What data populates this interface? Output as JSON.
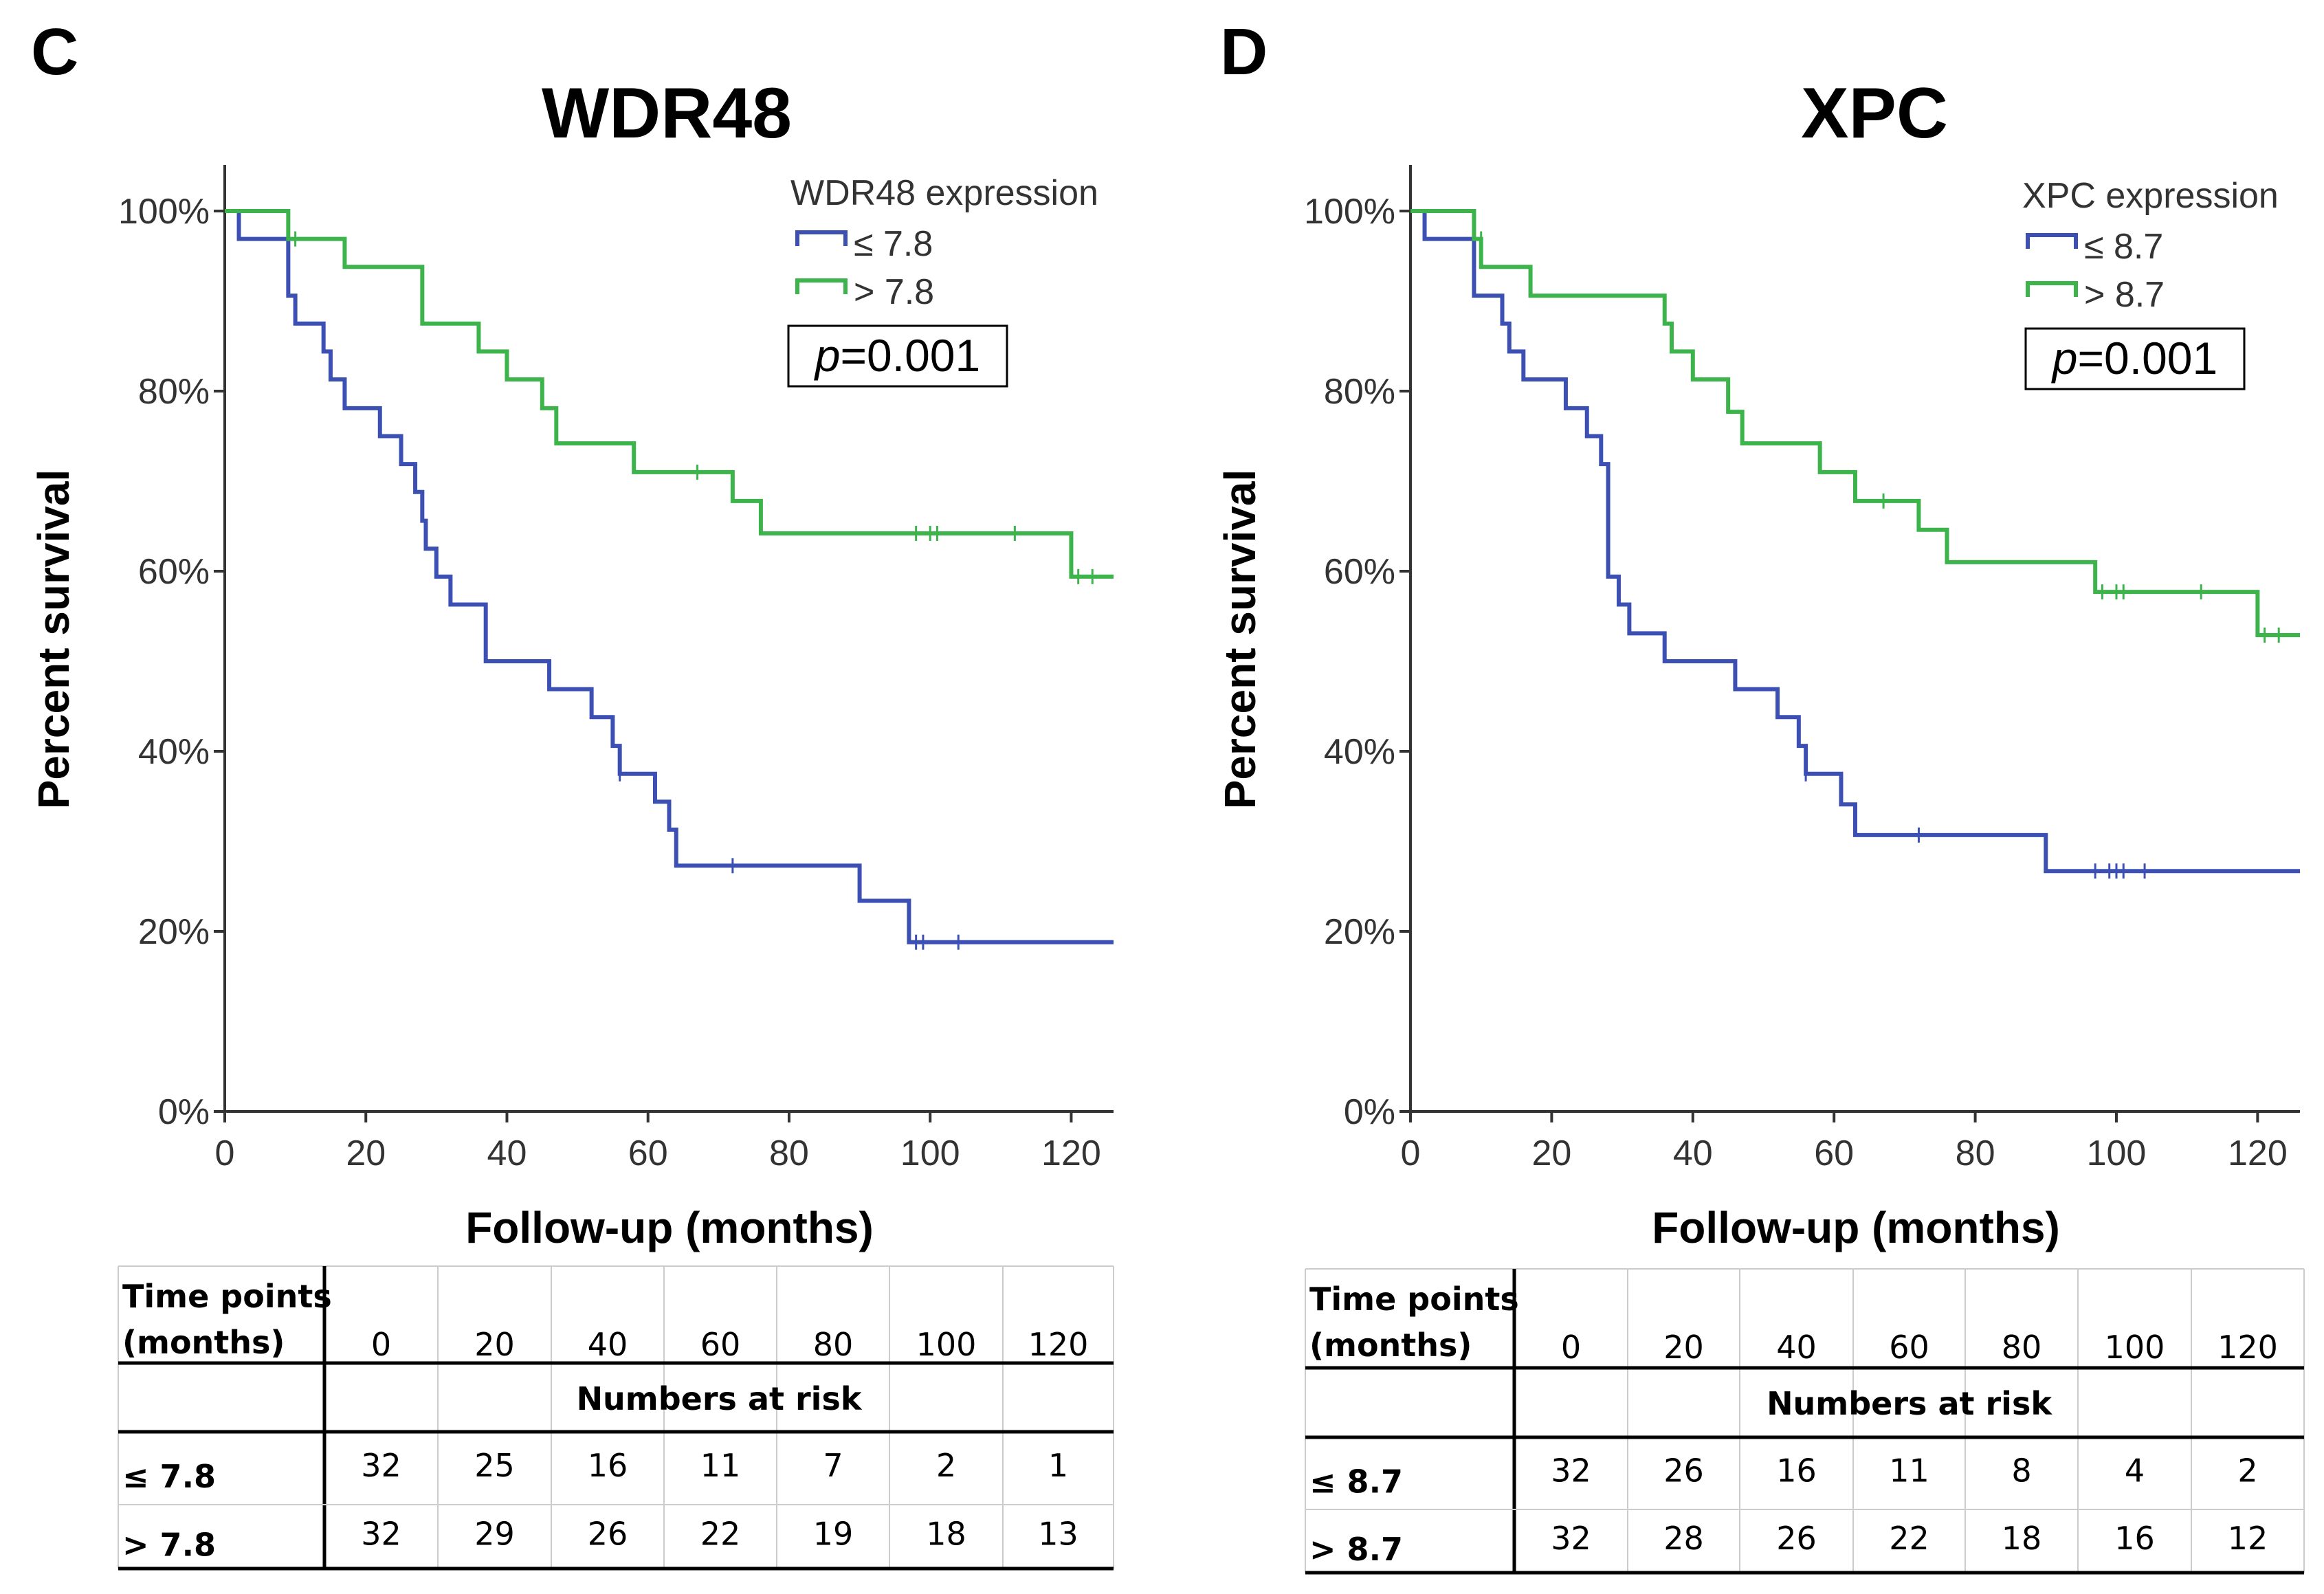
{
  "chart_data": [
    {
      "panel": "C",
      "type": "line",
      "subtype": "kaplan-meier",
      "title": "WDR48",
      "xlabel": "Follow-up (months)",
      "ylabel": "Percent survival",
      "xlim": [
        0,
        126
      ],
      "ylim": [
        0,
        100
      ],
      "xticks": [
        "0",
        "20",
        "40",
        "60",
        "80",
        "100",
        "120"
      ],
      "yticks": [
        "0%",
        "20%",
        "40%",
        "60%",
        "80%",
        "100%"
      ],
      "legend_title": "WDR48 expression",
      "p_value_prefix": "p",
      "p_value": "=0.001",
      "series": [
        {
          "name": "≤ 7.8",
          "color": "#3c50b4",
          "steps": [
            [
              0,
              100
            ],
            [
              2,
              96.9
            ],
            [
              9,
              90.6
            ],
            [
              10,
              87.5
            ],
            [
              14,
              84.4
            ],
            [
              15,
              81.3
            ],
            [
              17,
              78.1
            ],
            [
              22,
              75
            ],
            [
              25,
              71.9
            ],
            [
              27,
              68.8
            ],
            [
              28,
              65.6
            ],
            [
              28.5,
              62.5
            ],
            [
              30,
              59.4
            ],
            [
              32,
              56.3
            ],
            [
              37,
              50
            ],
            [
              46,
              46.9
            ],
            [
              52,
              43.8
            ],
            [
              55,
              40.6
            ],
            [
              56,
              37.5
            ],
            [
              61,
              34.4
            ],
            [
              63,
              31.3
            ],
            [
              64,
              27.3
            ],
            [
              90,
              23.4
            ],
            [
              97,
              18.8
            ],
            [
              126,
              18.8
            ]
          ],
          "censors": [
            [
              56,
              37.5
            ],
            [
              72,
              27.3
            ],
            [
              98,
              18.8
            ],
            [
              99,
              18.8
            ],
            [
              104,
              18.8
            ]
          ]
        },
        {
          "name": "> 7.8",
          "color": "#3cb44b",
          "steps": [
            [
              0,
              100
            ],
            [
              9,
              96.9
            ],
            [
              17,
              93.8
            ],
            [
              28,
              87.5
            ],
            [
              36,
              84.4
            ],
            [
              40,
              81.3
            ],
            [
              45,
              78.1
            ],
            [
              47,
              74.2
            ],
            [
              58,
              71
            ],
            [
              72,
              67.8
            ],
            [
              76,
              64.2
            ],
            [
              120,
              59.4
            ],
            [
              126,
              59.4
            ]
          ],
          "censors": [
            [
              10,
              96.9
            ],
            [
              67,
              71
            ],
            [
              98,
              64.2
            ],
            [
              100,
              64.2
            ],
            [
              101,
              64.2
            ],
            [
              112,
              64.2
            ],
            [
              121,
              59.4
            ],
            [
              123,
              59.4
            ]
          ]
        }
      ],
      "risk_table": {
        "header_line1": "Time points",
        "header_line2": "(months)",
        "subheader": "Numbers at risk",
        "time_points": [
          "0",
          "20",
          "40",
          "60",
          "80",
          "100",
          "120"
        ],
        "rows": [
          {
            "label": "≤ 7.8",
            "values": [
              "32",
              "25",
              "16",
              "11",
              "7",
              "2",
              "1"
            ]
          },
          {
            "label": "> 7.8",
            "values": [
              "32",
              "29",
              "26",
              "22",
              "19",
              "18",
              "13"
            ]
          }
        ]
      }
    },
    {
      "panel": "D",
      "type": "line",
      "subtype": "kaplan-meier",
      "title": "XPC",
      "xlabel": "Follow-up (months)",
      "ylabel": "Percent survival",
      "xlim": [
        0,
        126
      ],
      "ylim": [
        0,
        100
      ],
      "xticks": [
        "0",
        "20",
        "40",
        "60",
        "80",
        "100",
        "120"
      ],
      "yticks": [
        "0%",
        "20%",
        "40%",
        "60%",
        "80%",
        "100%"
      ],
      "legend_title": "XPC expression",
      "p_value_prefix": "p",
      "p_value": "=0.001",
      "series": [
        {
          "name": "≤ 8.7",
          "color": "#3c50b4",
          "steps": [
            [
              0,
              100
            ],
            [
              2,
              96.9
            ],
            [
              9,
              90.6
            ],
            [
              13,
              87.5
            ],
            [
              14,
              84.4
            ],
            [
              16,
              81.3
            ],
            [
              22,
              78.1
            ],
            [
              25,
              75
            ],
            [
              27,
              71.9
            ],
            [
              28,
              59.4
            ],
            [
              29.5,
              56.3
            ],
            [
              31,
              53.1
            ],
            [
              36,
              50
            ],
            [
              46,
              46.9
            ],
            [
              52,
              43.8
            ],
            [
              55,
              40.6
            ],
            [
              56,
              37.5
            ],
            [
              61,
              34.1
            ],
            [
              63,
              30.7
            ],
            [
              90,
              26.7
            ],
            [
              126,
              26.7
            ]
          ],
          "censors": [
            [
              56,
              37.5
            ],
            [
              72,
              30.7
            ],
            [
              97,
              26.7
            ],
            [
              99,
              26.7
            ],
            [
              100,
              26.7
            ],
            [
              101,
              26.7
            ],
            [
              104,
              26.7
            ]
          ]
        },
        {
          "name": "> 8.7",
          "color": "#3cb44b",
          "steps": [
            [
              0,
              100
            ],
            [
              9,
              96.9
            ],
            [
              10,
              93.8
            ],
            [
              17,
              90.6
            ],
            [
              36,
              87.5
            ],
            [
              37,
              84.4
            ],
            [
              40,
              81.3
            ],
            [
              45,
              77.7
            ],
            [
              47,
              74.2
            ],
            [
              58,
              71
            ],
            [
              63,
              67.8
            ],
            [
              72,
              64.6
            ],
            [
              76,
              61
            ],
            [
              97,
              57.7
            ],
            [
              120,
              52.9
            ],
            [
              126,
              52.9
            ]
          ],
          "censors": [
            [
              10,
              96.9
            ],
            [
              67,
              67.8
            ],
            [
              98,
              57.7
            ],
            [
              100,
              57.7
            ],
            [
              101,
              57.7
            ],
            [
              112,
              57.7
            ],
            [
              121,
              52.9
            ],
            [
              123,
              52.9
            ]
          ]
        }
      ],
      "risk_table": {
        "header_line1": "Time points",
        "header_line2": "(months)",
        "subheader": "Numbers at risk",
        "time_points": [
          "0",
          "20",
          "40",
          "60",
          "80",
          "100",
          "120"
        ],
        "rows": [
          {
            "label": "≤ 8.7",
            "values": [
              "32",
              "26",
              "16",
              "11",
              "8",
              "4",
              "2"
            ]
          },
          {
            "label": "> 8.7",
            "values": [
              "32",
              "28",
              "26",
              "22",
              "18",
              "16",
              "12"
            ]
          }
        ]
      }
    }
  ]
}
